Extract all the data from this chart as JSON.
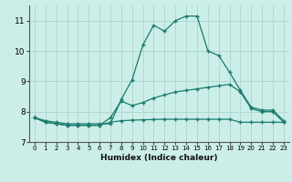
{
  "xlabel": "Humidex (Indice chaleur)",
  "background_color": "#cceee8",
  "grid_color": "#b0d8d0",
  "line_color": "#1a7a6e",
  "xlim": [
    -0.5,
    23.5
  ],
  "ylim": [
    7.0,
    11.5
  ],
  "yticks": [
    7,
    8,
    9,
    10,
    11
  ],
  "xticks": [
    0,
    1,
    2,
    3,
    4,
    5,
    6,
    7,
    8,
    9,
    10,
    11,
    12,
    13,
    14,
    15,
    16,
    17,
    18,
    19,
    20,
    21,
    22,
    23
  ],
  "series1_x": [
    0,
    1,
    2,
    3,
    4,
    5,
    6,
    7,
    8,
    9,
    10,
    11,
    12,
    13,
    14,
    15,
    16,
    17,
    18,
    19,
    20,
    21,
    22,
    23
  ],
  "series1_y": [
    7.8,
    7.7,
    7.65,
    7.6,
    7.6,
    7.6,
    7.6,
    7.6,
    8.4,
    9.05,
    10.2,
    10.85,
    10.65,
    11.0,
    11.15,
    11.15,
    10.0,
    9.85,
    9.3,
    8.7,
    8.15,
    8.05,
    8.05,
    7.7
  ],
  "series2_x": [
    0,
    1,
    2,
    3,
    4,
    5,
    6,
    7,
    8,
    9,
    10,
    11,
    12,
    13,
    14,
    15,
    16,
    17,
    18,
    19,
    20,
    21,
    22,
    23
  ],
  "series2_y": [
    7.8,
    7.65,
    7.6,
    7.55,
    7.55,
    7.55,
    7.55,
    7.8,
    8.35,
    8.2,
    8.3,
    8.45,
    8.55,
    8.65,
    8.7,
    8.75,
    8.8,
    8.85,
    8.9,
    8.65,
    8.1,
    8.0,
    8.0,
    7.65
  ],
  "series3_x": [
    0,
    1,
    2,
    3,
    4,
    5,
    6,
    7,
    8,
    9,
    10,
    11,
    12,
    13,
    14,
    15,
    16,
    17,
    18,
    19,
    20,
    21,
    22,
    23
  ],
  "series3_y": [
    7.8,
    7.65,
    7.6,
    7.55,
    7.55,
    7.55,
    7.55,
    7.65,
    7.7,
    7.72,
    7.73,
    7.74,
    7.75,
    7.75,
    7.75,
    7.75,
    7.75,
    7.75,
    7.75,
    7.65,
    7.65,
    7.65,
    7.65,
    7.65
  ]
}
